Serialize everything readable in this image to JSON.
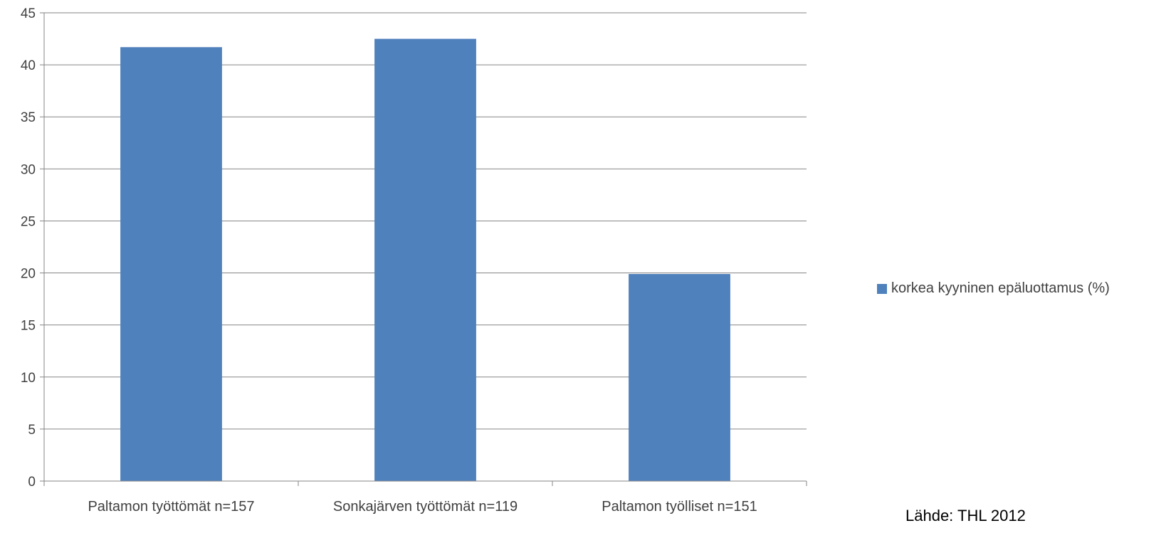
{
  "colors": {
    "bar": "#4f81bd",
    "grid": "#868686",
    "axis": "#868686"
  },
  "source_note": "Lähde: THL 2012",
  "chart_data": {
    "type": "bar",
    "categories": [
      "Paltamon työttömät n=157",
      "Sonkajärven työttömät n=119",
      "Paltamon työlliset n=151"
    ],
    "series": [
      {
        "name": "korkea kyyninen epäluottamus  (%)",
        "values": [
          41.7,
          42.5,
          19.9
        ]
      }
    ],
    "title": "",
    "xlabel": "",
    "ylabel": "",
    "ylim": [
      0,
      45
    ],
    "yticks": [
      0,
      5,
      10,
      15,
      20,
      25,
      30,
      35,
      40,
      45
    ],
    "ytick_labels": [
      "0",
      "5",
      "10",
      "15",
      "20",
      "25",
      "30",
      "35",
      "40",
      "45"
    ],
    "grid": true,
    "legend_position": "right"
  }
}
